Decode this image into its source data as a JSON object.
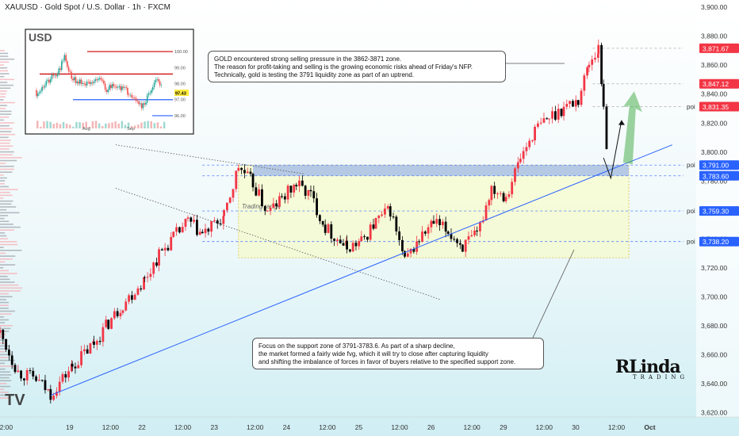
{
  "header": {
    "title": "XAUUSD · Gold Spot / U.S. Dollar · 1h · FXCM"
  },
  "callouts": {
    "top": [
      "GOLD encountered strong selling pressure in the 3862-3871 zone.",
      "The reason for profit-taking and selling is the growing economic risks ahead of Friday's NFP.",
      "Technically, gold is testing the 3791 liquidity zone as part of an uptrend."
    ],
    "bottom": [
      "Focus on the support zone of 3791-3783.6. As part of a sharp decline,",
      "the market formed a fairly wide fvg, which it will try to close after capturing liquidity",
      "and shifting the imbalance of forces in favor of buyers relative to the specified support zone."
    ]
  },
  "annotations": {
    "trading_range": "Trading range"
  },
  "logo": {
    "main": "RLinda",
    "sub": "TRADING"
  },
  "colors": {
    "bull": "#f23645",
    "bear": "#000000",
    "axis_highlight": "#f23645",
    "axis_blue": "#2962ff",
    "zone": "#ffff99",
    "support_zone": "#9fb8e8",
    "arrow_green": "#4caf50"
  },
  "chart_data": {
    "type": "candlestick",
    "title": "XAUUSD · Gold Spot / U.S. Dollar · 1h · FXCM",
    "ylim": [
      3605,
      3905
    ],
    "y_ticks": [
      3620,
      3640,
      3660,
      3680,
      3700,
      3720,
      3740,
      3760,
      3780,
      3800,
      3820,
      3840,
      3860,
      3880,
      3900
    ],
    "y_tick_labels": [
      "3,620.00",
      "3,640.00",
      "3,660.00",
      "3,680.00",
      "3,700.00",
      "3,720.00",
      "3,740.00",
      "3,760.00",
      "3,780.00",
      "3,800.00",
      "3,820.00",
      "3,840.00",
      "3,860.00",
      "3,880.00",
      "3,900.00"
    ],
    "x_labels": [
      {
        "label": "2:00",
        "day": 18.083
      },
      {
        "label": "19",
        "day": 19
      },
      {
        "label": "12:00",
        "day": 19.5
      },
      {
        "label": "22",
        "day": 20
      },
      {
        "label": "12:00",
        "day": 20.5
      },
      {
        "label": "23",
        "day": 21
      },
      {
        "label": "12:00",
        "day": 21.5
      },
      {
        "label": "24",
        "day": 22
      },
      {
        "label": "12:00",
        "day": 22.5
      },
      {
        "label": "25",
        "day": 23
      },
      {
        "label": "12:00",
        "day": 23.5
      },
      {
        "label": "26",
        "day": 24
      },
      {
        "label": "12:00",
        "day": 24.5
      },
      {
        "label": "29",
        "day": 25
      },
      {
        "label": "12:00",
        "day": 25.5
      },
      {
        "label": "30",
        "day": 26
      },
      {
        "label": "12:00",
        "day": 26.5
      },
      {
        "label": "Oct",
        "day": 27
      },
      {
        "label": "12:00",
        "day": 27.5
      }
    ],
    "x_range_days": [
      18.0,
      27.5
    ],
    "price_levels": [
      {
        "value": 3871.67,
        "label": "3,871.67",
        "style": "red",
        "poi": false
      },
      {
        "value": 3847.12,
        "label": "3,847.12",
        "style": "red",
        "poi": false
      },
      {
        "value": 3831.35,
        "label": "3,831.35",
        "style": "red",
        "poi": true
      },
      {
        "value": 3791.0,
        "label": "3,791.00",
        "style": "blue",
        "poi": true
      },
      {
        "value": 3783.6,
        "label": "3,783.60",
        "style": "blue",
        "poi": false
      },
      {
        "value": 3759.3,
        "label": "3,759.30",
        "style": "blue",
        "poi": true
      },
      {
        "value": 3738.2,
        "label": "3,738.20",
        "style": "blue",
        "poi": true
      }
    ],
    "poi_label": "poi",
    "trading_range_zone": {
      "x_start": 21.3,
      "x_end": 26.7,
      "y_low": 3727,
      "y_high": 3791
    },
    "support_zone": {
      "x_start": 21.5,
      "x_end": 26.7,
      "y_low": 3783.6,
      "y_high": 3791
    },
    "trendline": {
      "x1": 18.7,
      "y1": 3632,
      "x2": 27.3,
      "y2": 3805
    },
    "channel_upper": {
      "x1": 19.6,
      "y1": 3805,
      "x2": 22.2,
      "y2": 3785
    },
    "channel_lower": {
      "x1": 19.6,
      "y1": 3775,
      "x2": 24.1,
      "y2": 3698
    },
    "projection_path": [
      [
        26.35,
        3796
      ],
      [
        26.45,
        3782
      ],
      [
        26.6,
        3822
      ]
    ],
    "green_arrow_target": {
      "day": 26.73,
      "price": 3842
    },
    "candles_anchor": [
      [
        18.0,
        3675
      ],
      [
        18.25,
        3648
      ],
      [
        18.5,
        3643
      ],
      [
        18.7,
        3633
      ],
      [
        19.0,
        3652
      ],
      [
        19.3,
        3668
      ],
      [
        19.5,
        3682
      ],
      [
        19.7,
        3695
      ],
      [
        20.0,
        3712
      ],
      [
        20.2,
        3729
      ],
      [
        20.4,
        3741
      ],
      [
        20.6,
        3752
      ],
      [
        20.8,
        3743
      ],
      [
        21.1,
        3755
      ],
      [
        21.3,
        3790
      ],
      [
        21.5,
        3778
      ],
      [
        21.7,
        3758
      ],
      [
        21.9,
        3768
      ],
      [
        22.1,
        3778
      ],
      [
        22.3,
        3770
      ],
      [
        22.5,
        3748
      ],
      [
        22.8,
        3734
      ],
      [
        23.0,
        3738
      ],
      [
        23.2,
        3752
      ],
      [
        23.4,
        3760
      ],
      [
        23.6,
        3724
      ],
      [
        23.8,
        3740
      ],
      [
        24.0,
        3751
      ],
      [
        24.2,
        3745
      ],
      [
        24.4,
        3735
      ],
      [
        24.6,
        3742
      ],
      [
        24.8,
        3776
      ],
      [
        25.0,
        3770
      ],
      [
        25.2,
        3796
      ],
      [
        25.4,
        3815
      ],
      [
        25.6,
        3824
      ],
      [
        25.8,
        3831
      ],
      [
        26.0,
        3836
      ],
      [
        26.15,
        3862
      ],
      [
        26.28,
        3871
      ],
      [
        26.35,
        3833
      ],
      [
        26.4,
        3800
      ]
    ],
    "inset": {
      "title": "USD",
      "y_labels": [
        "100.00",
        "99.00",
        "98.00",
        "97.00",
        "96.00"
      ],
      "y_values": [
        100,
        99,
        98,
        97,
        96
      ],
      "x_labels": [
        "Aug",
        "Sep"
      ],
      "current_value": "97.43",
      "level_high": 100.0,
      "level_mid": 98.6,
      "level_low_blue": 97.0,
      "level_low2_blue": 96.0
    }
  }
}
